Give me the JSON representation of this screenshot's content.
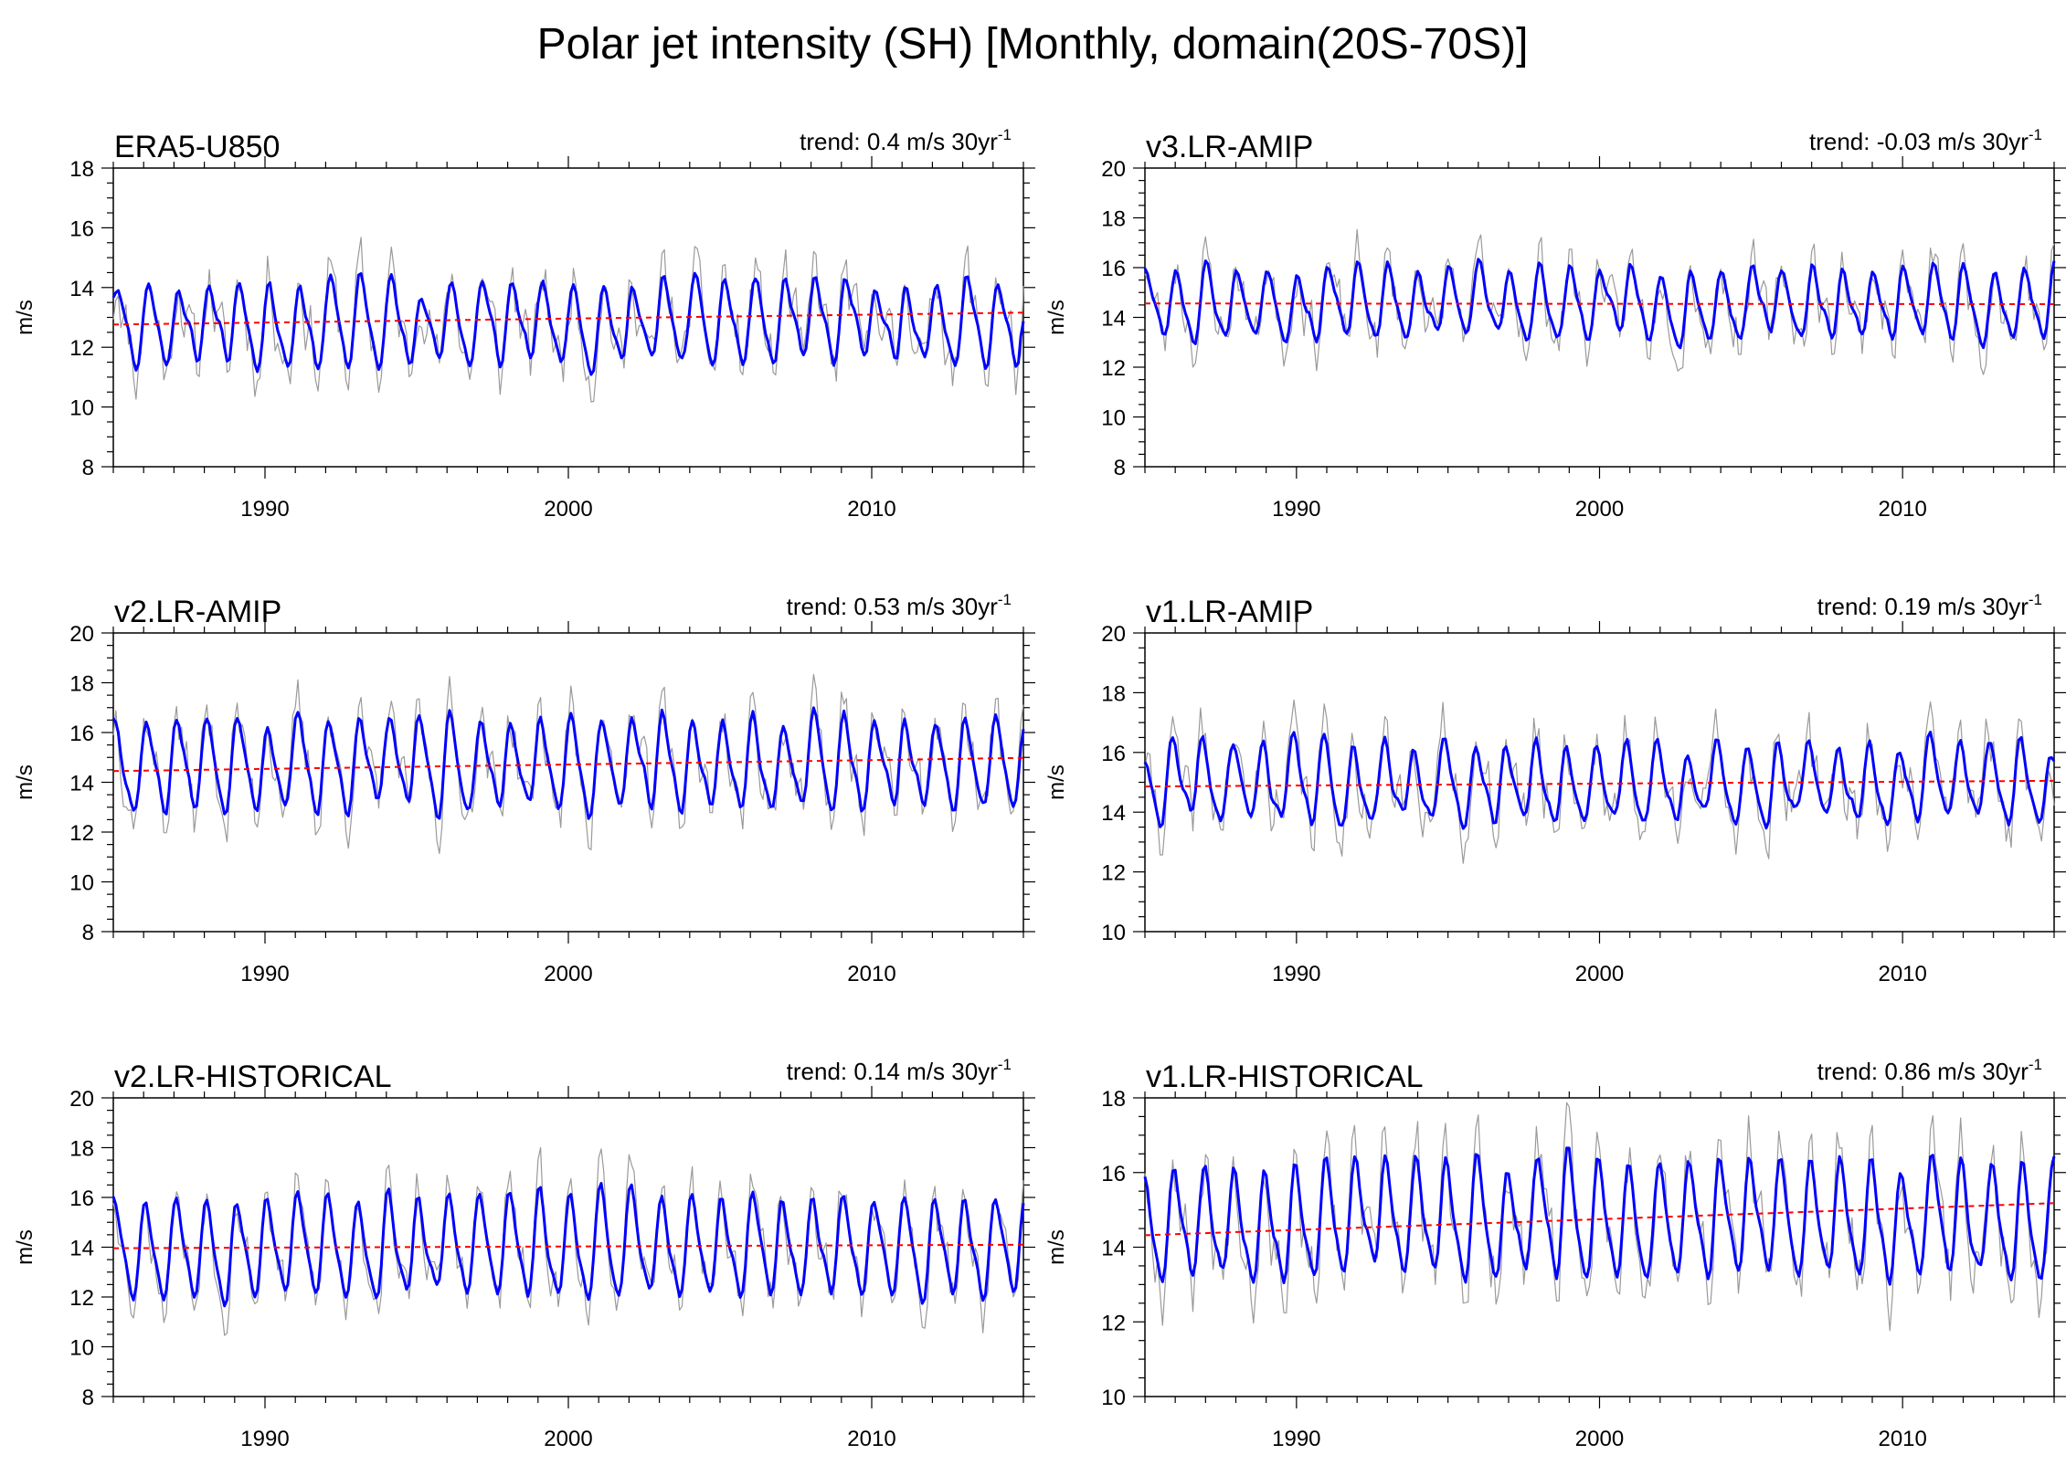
{
  "figure": {
    "title": "Polar jet intensity (SH) [Monthly, domain(20S-70S)]"
  },
  "colors": {
    "monthly": "#9a9a9a",
    "smoothed": "#0000ff",
    "trend": "#ff0000",
    "axis": "#000000"
  },
  "chart_data": [
    {
      "type": "line",
      "title": "ERA5-U850",
      "trend_text": "trend: 0.4 m/s 30yr",
      "trend_exp": "-1",
      "ylabel": "m/s",
      "xlabel": "",
      "xlim": [
        1985,
        2015
      ],
      "xticks": [
        1990,
        2000,
        2010
      ],
      "ylim": [
        8,
        18
      ],
      "yticks": [
        8,
        10,
        12,
        14,
        16,
        18
      ],
      "series": [
        {
          "name": "monthly",
          "style": "thin-gray",
          "mean": 12.8,
          "amp": 1.4,
          "noise": 1.0,
          "phase": 0.3,
          "seed": 11
        },
        {
          "name": "smoothed",
          "style": "thick-blue",
          "mean": 12.8,
          "amp": 1.4,
          "noise": 0.35,
          "phase": 0.3,
          "seed": 11
        },
        {
          "name": "trend",
          "style": "dashed-red",
          "x": [
            1985,
            2015
          ],
          "y": [
            12.76,
            13.16
          ]
        }
      ]
    },
    {
      "type": "line",
      "title": "v3.LR-AMIP",
      "trend_text": "trend: -0.03 m/s 30yr",
      "trend_exp": "-1",
      "ylabel": "m/s",
      "xlabel": "",
      "xlim": [
        1985,
        2015
      ],
      "xticks": [
        1990,
        2000,
        2010
      ],
      "ylim": [
        8,
        20
      ],
      "yticks": [
        8,
        10,
        12,
        14,
        16,
        18,
        20
      ],
      "series": [
        {
          "name": "monthly",
          "style": "thin-gray",
          "mean": 14.55,
          "amp": 1.4,
          "noise": 1.0,
          "phase": 1.1,
          "seed": 23
        },
        {
          "name": "smoothed",
          "style": "thick-blue",
          "mean": 14.55,
          "amp": 1.4,
          "noise": 0.35,
          "phase": 1.1,
          "seed": 23
        },
        {
          "name": "trend",
          "style": "dashed-red",
          "x": [
            1985,
            2015
          ],
          "y": [
            14.56,
            14.53
          ]
        }
      ]
    },
    {
      "type": "line",
      "title": "v2.LR-AMIP",
      "trend_text": "trend: 0.53 m/s 30yr",
      "trend_exp": "-1",
      "ylabel": "m/s",
      "xlabel": "",
      "xlim": [
        1985,
        2015
      ],
      "xticks": [
        1990,
        2000,
        2010
      ],
      "ylim": [
        8,
        20
      ],
      "yticks": [
        8,
        10,
        12,
        14,
        16,
        18,
        20
      ],
      "series": [
        {
          "name": "monthly",
          "style": "thin-gray",
          "mean": 14.7,
          "amp": 1.8,
          "noise": 1.1,
          "phase": 0.7,
          "seed": 37
        },
        {
          "name": "smoothed",
          "style": "thick-blue",
          "mean": 14.7,
          "amp": 1.8,
          "noise": 0.4,
          "phase": 0.7,
          "seed": 37
        },
        {
          "name": "trend",
          "style": "dashed-red",
          "x": [
            1985,
            2015
          ],
          "y": [
            14.45,
            14.98
          ]
        }
      ]
    },
    {
      "type": "line",
      "title": "v1.LR-AMIP",
      "trend_text": "trend: 0.19 m/s 30yr",
      "trend_exp": "-1",
      "ylabel": "m/s",
      "xlabel": "",
      "xlim": [
        1985,
        2015
      ],
      "xticks": [
        1990,
        2000,
        2010
      ],
      "ylim": [
        10,
        20
      ],
      "yticks": [
        10,
        12,
        14,
        16,
        18,
        20
      ],
      "series": [
        {
          "name": "monthly",
          "style": "thin-gray",
          "mean": 14.95,
          "amp": 1.3,
          "noise": 1.0,
          "phase": 2.0,
          "seed": 41
        },
        {
          "name": "smoothed",
          "style": "thick-blue",
          "mean": 14.95,
          "amp": 1.3,
          "noise": 0.35,
          "phase": 2.0,
          "seed": 41
        },
        {
          "name": "trend",
          "style": "dashed-red",
          "x": [
            1985,
            2015
          ],
          "y": [
            14.86,
            15.05
          ]
        }
      ]
    },
    {
      "type": "line",
      "title": "v2.LR-HISTORICAL",
      "trend_text": "trend: 0.14 m/s 30yr",
      "trend_exp": "-1",
      "ylabel": "m/s",
      "xlabel": "",
      "xlim": [
        1985,
        2015
      ],
      "xticks": [
        1990,
        2000,
        2010
      ],
      "ylim": [
        8,
        20
      ],
      "yticks": [
        8,
        10,
        12,
        14,
        16,
        18,
        20
      ],
      "series": [
        {
          "name": "monthly",
          "style": "thin-gray",
          "mean": 14.0,
          "amp": 2.0,
          "noise": 1.0,
          "phase": 0.9,
          "seed": 53
        },
        {
          "name": "smoothed",
          "style": "thick-blue",
          "mean": 14.0,
          "amp": 2.0,
          "noise": 0.35,
          "phase": 0.9,
          "seed": 53
        },
        {
          "name": "trend",
          "style": "dashed-red",
          "x": [
            1985,
            2015
          ],
          "y": [
            13.96,
            14.1
          ]
        }
      ]
    },
    {
      "type": "line",
      "title": "v1.LR-HISTORICAL",
      "trend_text": "trend: 0.86 m/s 30yr",
      "trend_exp": "-1",
      "ylabel": "m/s",
      "xlabel": "",
      "xlim": [
        1985,
        2015
      ],
      "xticks": [
        1990,
        2000,
        2010
      ],
      "ylim": [
        10,
        18
      ],
      "yticks": [
        10,
        12,
        14,
        16,
        18
      ],
      "series": [
        {
          "name": "monthly",
          "style": "thin-gray",
          "mean": 14.7,
          "amp": 1.5,
          "noise": 0.9,
          "phase": 1.6,
          "seed": 67
        },
        {
          "name": "smoothed",
          "style": "thick-blue",
          "mean": 14.7,
          "amp": 1.5,
          "noise": 0.3,
          "phase": 1.6,
          "seed": 67
        },
        {
          "name": "trend",
          "style": "dashed-red",
          "x": [
            1985,
            2015
          ],
          "y": [
            14.32,
            15.18
          ]
        }
      ]
    }
  ]
}
